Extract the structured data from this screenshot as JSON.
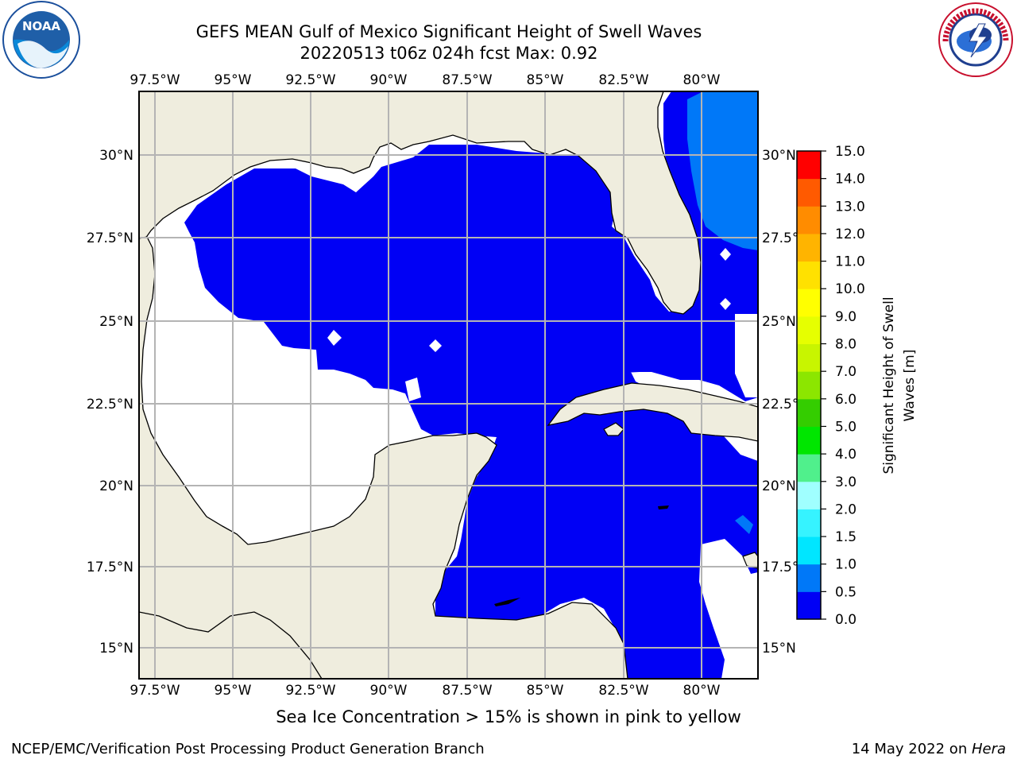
{
  "title": {
    "line1": "GEFS MEAN Gulf of Mexico Significant Height of Swell Waves",
    "line2": "20220513 t06z 024h fcst   Max: 0.92"
  },
  "map": {
    "lon_labels": [
      "97.5°W",
      "95°W",
      "92.5°W",
      "90°W",
      "87.5°W",
      "85°W",
      "82.5°W",
      "80°W"
    ],
    "lat_labels": [
      "30°N",
      "27.5°N",
      "25°N",
      "22.5°N",
      "20°N",
      "17.5°N",
      "15°N"
    ],
    "lon_range": [
      -98,
      -78.2
    ],
    "lat_range": [
      14,
      31.7
    ],
    "grid": true,
    "colors": {
      "land": "#efedde",
      "undefined_water": "#ffffff",
      "swell_0_0.5": "#0000f5",
      "swell_0.5_1.0": "#0078f8",
      "coast": "#000000",
      "gridline": "#b4b4b4"
    }
  },
  "colorbar": {
    "label_line1": "Significant Height of Swell",
    "label_line2": "Waves [m]",
    "ticks": [
      "0.0",
      "0.5",
      "1.0",
      "1.5",
      "2.0",
      "3.0",
      "4.0",
      "5.0",
      "6.0",
      "7.0",
      "8.0",
      "9.0",
      "10.0",
      "11.0",
      "12.0",
      "13.0",
      "14.0",
      "15.0"
    ],
    "colors": [
      "#0000f5",
      "#0078f8",
      "#00e6ff",
      "#36f3ff",
      "#a0ffff",
      "#50f08c",
      "#00e600",
      "#34cd00",
      "#8ce600",
      "#c8f500",
      "#e6ff00",
      "#ffff00",
      "#ffe100",
      "#ffb400",
      "#ff8c00",
      "#ff5a00",
      "#ff0000"
    ]
  },
  "note": "Sea Ice Concentration > 15% is shown in pink to yellow",
  "footer": {
    "left": "NCEP/EMC/Verification Post Processing Product Generation Branch",
    "right_date": "14 May 2022 on ",
    "right_machine": "Hera"
  },
  "logos": {
    "left_text": "NOAA",
    "right_text": "NATIONAL WEATHER SERVICE"
  }
}
